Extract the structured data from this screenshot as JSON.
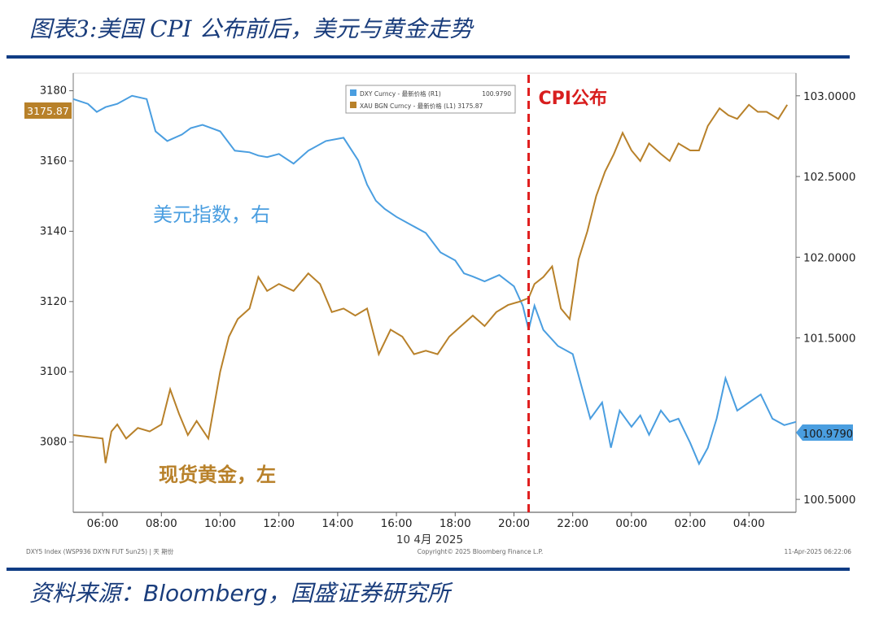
{
  "header": {
    "title": "图表3:美国 CPI 公布前后，美元与黄金走势"
  },
  "footer": {
    "source_prefix": "资料来源：",
    "source_brand": "Bloomberg",
    "source_suffix": "，国盛证券研究所"
  },
  "chart_data": {
    "type": "line",
    "annotation": "CPI公布",
    "annotation_x": "20:30",
    "date_label": "10 4月 2025",
    "series_labels": {
      "dxy": "美元指数，右",
      "gold": "现货黄金，左"
    },
    "legend": [
      {
        "name": "DXY Curncy - 最新价格 (R1)",
        "value": "100.9790",
        "color": "#4a9ee0"
      },
      {
        "name": "XAU BGN Curncy - 最新价格 (L1) 3175.87",
        "value": "",
        "color": "#b8812a"
      }
    ],
    "left_axis": {
      "ticks": [
        "3080",
        "3100",
        "3120",
        "3140",
        "3160",
        "3180"
      ],
      "min": 3060,
      "max": 3185,
      "current": "3175.87"
    },
    "right_axis": {
      "ticks": [
        "100.5000",
        "101.5000",
        "102.0000",
        "102.5000",
        "103.0000"
      ],
      "min": 100.42,
      "max": 103.14,
      "current": "100.9790"
    },
    "x_ticks": [
      "06:00",
      "08:00",
      "10:00",
      "12:00",
      "14:00",
      "16:00",
      "18:00",
      "20:00",
      "22:00",
      "00:00",
      "02:00",
      "04:00"
    ],
    "x_range_hours": [
      5.0,
      29.6
    ],
    "footer_left": "DXY5 Index (WSP936 DXYN FUT 5un25) | 天 期份",
    "footer_mid": "Copyright© 2025 Bloomberg Finance L.P.",
    "footer_right": "11-Apr-2025 06:22:06",
    "dxy": {
      "name": "DXY Curncy",
      "x": [
        5.0,
        5.5,
        5.8,
        6.1,
        6.5,
        7.0,
        7.5,
        7.8,
        8.2,
        8.7,
        9.0,
        9.4,
        10.0,
        10.5,
        11.0,
        11.3,
        11.6,
        12.0,
        12.5,
        13.0,
        13.6,
        14.2,
        14.7,
        15.0,
        15.3,
        15.6,
        16.0,
        16.5,
        17.0,
        17.5,
        18.0,
        18.3,
        18.6,
        19.0,
        19.5,
        20.0,
        20.3,
        20.5,
        20.7,
        21.0,
        21.5,
        22.0,
        22.3,
        22.6,
        23.0,
        23.3,
        23.6,
        24.0,
        24.3,
        24.6,
        25.0,
        25.3,
        25.6,
        26.0,
        26.3,
        26.6,
        26.9,
        27.2,
        27.6,
        28.0,
        28.4,
        28.8,
        29.2,
        29.6
      ],
      "y": [
        102.98,
        102.95,
        102.9,
        102.93,
        102.95,
        103.0,
        102.98,
        102.78,
        102.72,
        102.76,
        102.8,
        102.82,
        102.78,
        102.66,
        102.65,
        102.63,
        102.62,
        102.64,
        102.58,
        102.66,
        102.72,
        102.74,
        102.6,
        102.45,
        102.35,
        102.3,
        102.25,
        102.2,
        102.15,
        102.03,
        101.98,
        101.9,
        101.88,
        101.85,
        101.89,
        101.82,
        101.7,
        101.55,
        101.7,
        101.55,
        101.45,
        101.4,
        101.2,
        101.0,
        101.1,
        100.82,
        101.05,
        100.95,
        101.02,
        100.9,
        101.05,
        100.98,
        101.0,
        100.85,
        100.72,
        100.82,
        101.0,
        101.25,
        101.05,
        101.1,
        101.15,
        101.0,
        100.96,
        100.98
      ]
    },
    "gold": {
      "name": "XAU BGN Curncy",
      "x": [
        5.0,
        6.0,
        6.1,
        6.3,
        6.5,
        6.8,
        7.2,
        7.6,
        8.0,
        8.3,
        8.6,
        8.9,
        9.2,
        9.6,
        10.0,
        10.3,
        10.6,
        11.0,
        11.3,
        11.6,
        12.0,
        12.5,
        13.0,
        13.4,
        13.8,
        14.2,
        14.6,
        15.0,
        15.4,
        15.8,
        16.2,
        16.6,
        17.0,
        17.4,
        17.8,
        18.2,
        18.6,
        19.0,
        19.4,
        19.8,
        20.2,
        20.5,
        20.7,
        21.0,
        21.3,
        21.6,
        21.9,
        22.2,
        22.5,
        22.8,
        23.1,
        23.4,
        23.7,
        24.0,
        24.3,
        24.6,
        25.0,
        25.3,
        25.6,
        26.0,
        26.3,
        26.6,
        27.0,
        27.3,
        27.6,
        28.0,
        28.3,
        28.6,
        29.0,
        29.3
      ],
      "y": [
        3082,
        3081,
        3074,
        3083,
        3085,
        3081,
        3084,
        3083,
        3085,
        3095,
        3088,
        3082,
        3086,
        3081,
        3100,
        3110,
        3115,
        3118,
        3127,
        3123,
        3125,
        3123,
        3128,
        3125,
        3117,
        3118,
        3116,
        3118,
        3105,
        3112,
        3110,
        3105,
        3106,
        3105,
        3110,
        3113,
        3116,
        3113,
        3117,
        3119,
        3120,
        3121,
        3125,
        3127,
        3130,
        3118,
        3115,
        3132,
        3140,
        3150,
        3157,
        3162,
        3168,
        3163,
        3160,
        3165,
        3162,
        3160,
        3165,
        3163,
        3163,
        3170,
        3175,
        3173,
        3172,
        3176,
        3174,
        3174,
        3172,
        3176
      ]
    }
  }
}
